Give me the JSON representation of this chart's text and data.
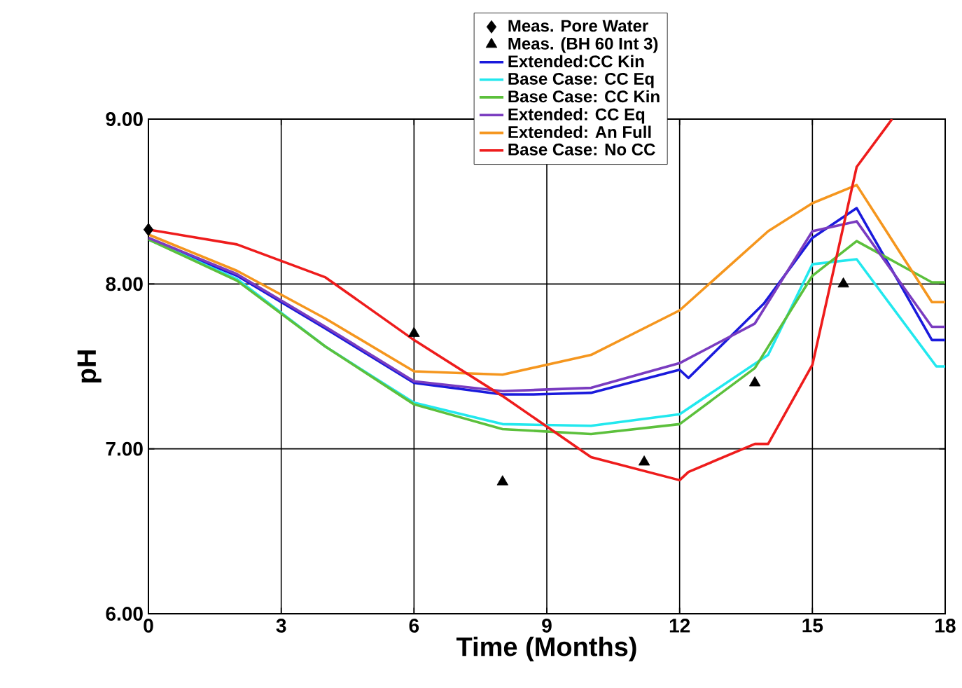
{
  "chart_data": {
    "type": "line",
    "xlabel": "Time (Months)",
    "ylabel": "pH",
    "xlim": [
      0,
      18
    ],
    "xticks": [
      0,
      3,
      6,
      9,
      12,
      15,
      18
    ],
    "ylim": [
      6,
      9
    ],
    "yticks": [
      {
        "value": 6,
        "label": "6.00"
      },
      {
        "value": 7,
        "label": "7.00"
      },
      {
        "value": 8,
        "label": "8.00"
      },
      {
        "value": 9,
        "label": "9.00"
      }
    ],
    "grid": true,
    "legend": "top",
    "series": [
      {
        "name": "Meas. Pore Water",
        "type": "scatter",
        "marker": "diamond",
        "color": "#000000",
        "x": [
          0
        ],
        "values": [
          8.33
        ]
      },
      {
        "name": "Meas. (BH 60 Int 3)",
        "type": "scatter",
        "marker": "triangle",
        "color": "#000000",
        "x": [
          6,
          8,
          11.2,
          13.7,
          15.7
        ],
        "values": [
          7.7,
          6.8,
          6.92,
          7.4,
          8.0
        ]
      },
      {
        "name": "Extended:CC Kin",
        "color": "#1a1adc",
        "x": [
          0,
          2,
          4,
          6,
          8,
          8.7,
          10,
          12,
          12.2,
          13.9,
          15,
          16,
          17.7,
          18
        ],
        "values": [
          8.27,
          8.05,
          7.73,
          7.4,
          7.33,
          7.33,
          7.34,
          7.48,
          7.43,
          7.88,
          8.28,
          8.46,
          7.66,
          7.66
        ]
      },
      {
        "name": "Base Case: CC Eq",
        "color": "#22e8ee",
        "x": [
          0,
          2,
          4,
          6,
          8,
          10,
          12,
          14,
          15,
          16,
          17.8,
          18
        ],
        "values": [
          8.27,
          8.03,
          7.62,
          7.28,
          7.15,
          7.14,
          7.21,
          7.57,
          8.12,
          8.15,
          7.5,
          7.5
        ]
      },
      {
        "name": "Base Case: CC Kin",
        "color": "#5cc03c",
        "x": [
          0,
          2,
          4,
          6,
          8,
          10,
          12,
          13.7,
          15,
          16,
          17.7,
          18
        ],
        "values": [
          8.27,
          8.02,
          7.62,
          7.27,
          7.12,
          7.09,
          7.15,
          7.49,
          8.05,
          8.26,
          8.01,
          8.01
        ]
      },
      {
        "name": "Extended: CC Eq",
        "color": "#7a3cc0",
        "x": [
          0,
          2,
          4,
          6,
          8,
          10,
          12,
          13.7,
          15,
          16,
          17.7,
          18
        ],
        "values": [
          8.28,
          8.06,
          7.74,
          7.41,
          7.35,
          7.37,
          7.52,
          7.76,
          8.32,
          8.38,
          7.74,
          7.74
        ]
      },
      {
        "name": "Extended: An Full",
        "color": "#f5961e",
        "x": [
          0,
          2,
          4,
          6,
          8,
          10,
          12,
          14,
          15,
          16,
          17.7,
          18
        ],
        "values": [
          8.3,
          8.08,
          7.79,
          7.47,
          7.45,
          7.57,
          7.84,
          8.32,
          8.49,
          8.6,
          7.89,
          7.89
        ]
      },
      {
        "name": "Base Case: No CC",
        "color": "#ee1c1c",
        "x": [
          0,
          2,
          4,
          6,
          8,
          10,
          12,
          12.2,
          13.7,
          14,
          15,
          16,
          16.8
        ],
        "values": [
          8.33,
          8.24,
          8.04,
          7.66,
          7.32,
          6.95,
          6.81,
          6.86,
          7.03,
          7.03,
          7.51,
          8.71,
          9.0
        ]
      }
    ]
  }
}
